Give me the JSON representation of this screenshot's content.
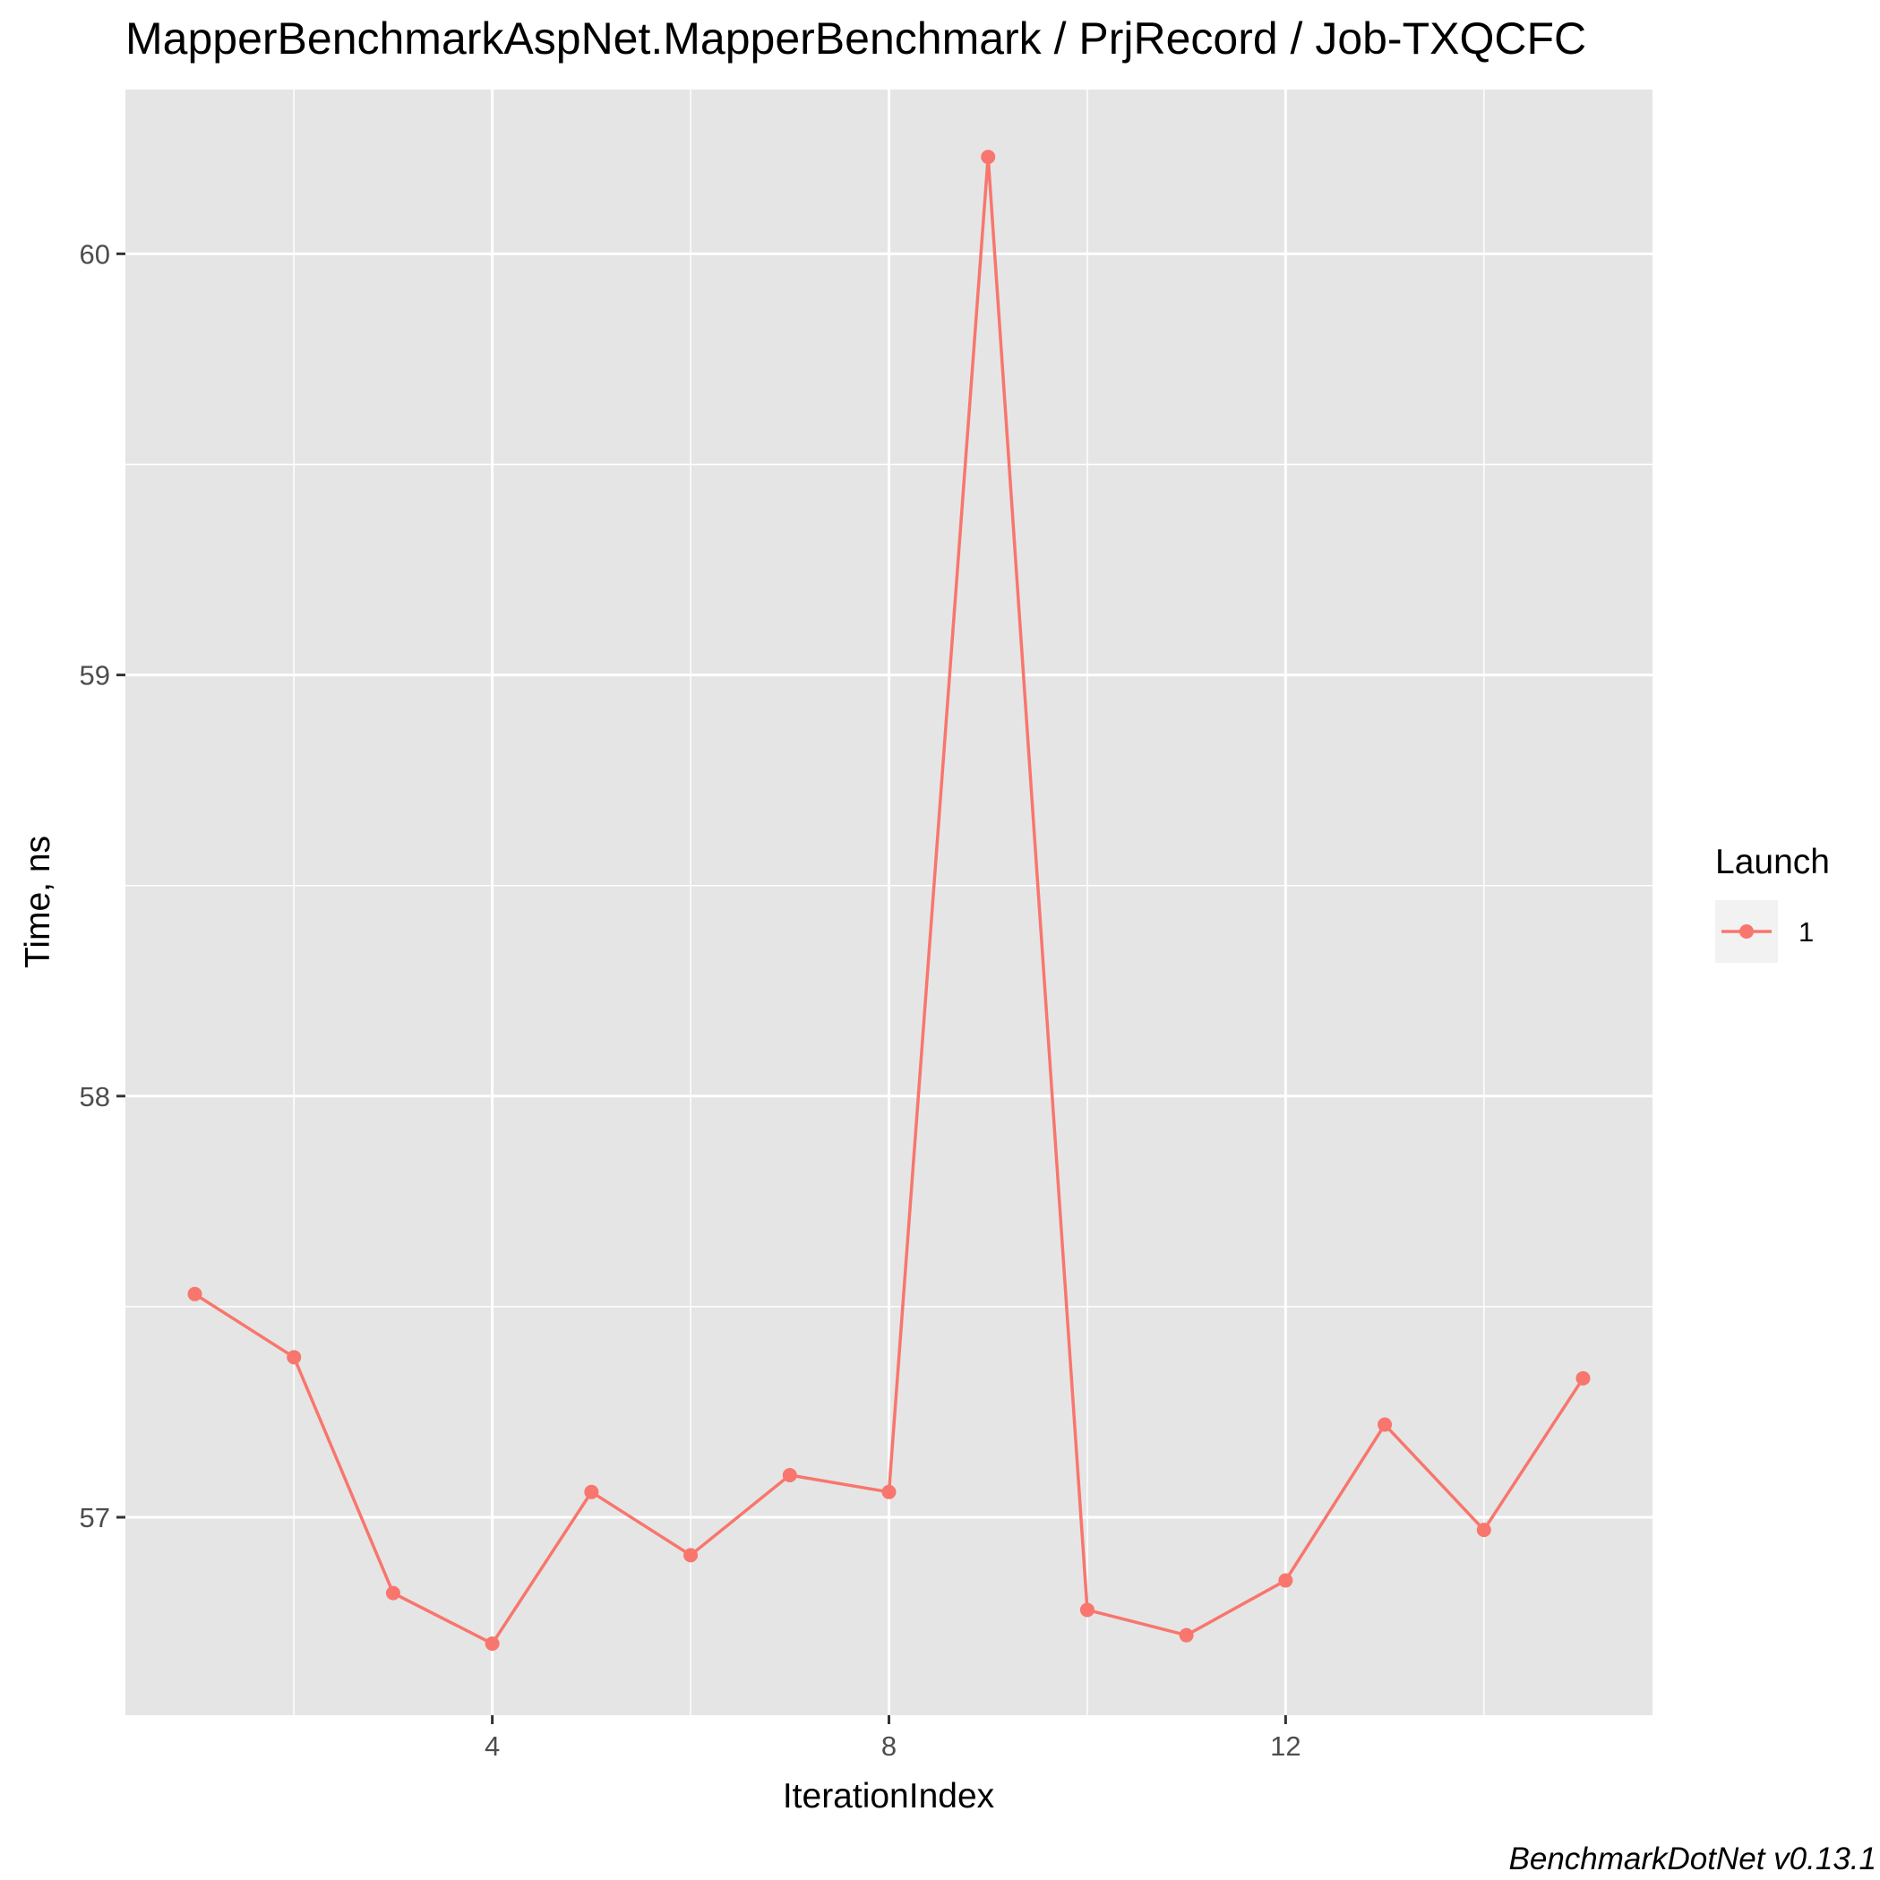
{
  "chart_data": {
    "type": "line",
    "title": "MapperBenchmarkAspNet.MapperBenchmark / PrjRecord / Job-TXQCFC",
    "xlabel": "IterationIndex",
    "ylabel": "Time, ns",
    "caption": "BenchmarkDotNet v0.13.1",
    "x": [
      1,
      2,
      3,
      4,
      5,
      6,
      7,
      8,
      9,
      10,
      11,
      12,
      13,
      14,
      15
    ],
    "series": [
      {
        "name": "1",
        "color": "#F8766D",
        "values": [
          57.53,
          57.38,
          56.82,
          56.7,
          57.06,
          56.91,
          57.1,
          57.06,
          60.23,
          56.78,
          56.72,
          56.85,
          57.22,
          56.97,
          57.33
        ]
      }
    ],
    "xlim": [
      0.3,
      15.7
    ],
    "ylim": [
      56.53,
      60.39
    ],
    "x_ticks": [
      4,
      8,
      12
    ],
    "x_ticks_minor": [
      2,
      6,
      10,
      14
    ],
    "y_ticks": [
      57,
      58,
      59,
      60
    ],
    "y_ticks_minor": [
      56.5,
      57.5,
      58.5,
      59.5
    ],
    "x_tick_labels": [
      "4",
      "8",
      "12"
    ],
    "y_tick_labels": [
      "57",
      "58",
      "59",
      "60"
    ],
    "grid": true,
    "panel_background": "#E5E5E5",
    "legend": {
      "title": "Launch",
      "position": "right",
      "entries": [
        "1"
      ]
    }
  }
}
